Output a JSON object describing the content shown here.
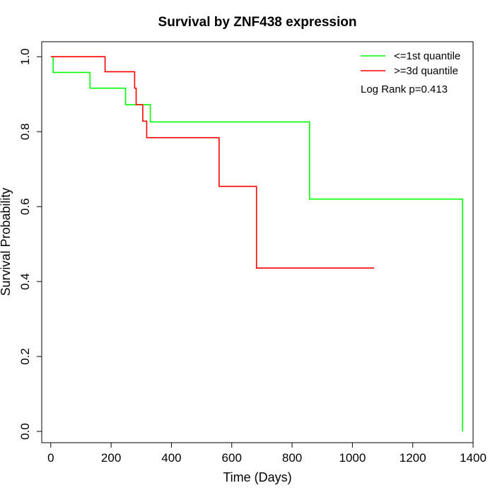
{
  "chart_data": {
    "type": "line",
    "subtype": "kaplan-meier step curve",
    "title": "Survival by ZNF438 expression",
    "xlabel": "Time (Days)",
    "ylabel": "Survival Probability",
    "xlim": [
      -30,
      1400
    ],
    "ylim": [
      -0.03,
      1.04
    ],
    "xticks": [
      0,
      200,
      400,
      600,
      800,
      1000,
      1200,
      1400
    ],
    "yticks": [
      0.0,
      0.2,
      0.4,
      0.6,
      0.8,
      1.0
    ],
    "xtick_labels": [
      "0",
      "200",
      "400",
      "600",
      "800",
      "1000",
      "1200",
      "1400"
    ],
    "ytick_labels": [
      "0.0",
      "0.2",
      "0.4",
      "0.6",
      "0.8",
      "1.0"
    ],
    "grid": false,
    "legend_position": "top-right",
    "annotation": "Log Rank p=0.413",
    "series": [
      {
        "name": "<=1st quantile",
        "color": "#00ff00",
        "steps": [
          [
            0,
            1.0
          ],
          [
            8,
            0.958
          ],
          [
            130,
            0.916
          ],
          [
            248,
            0.872
          ],
          [
            330,
            0.826
          ],
          [
            858,
            0.62
          ],
          [
            1365,
            0.0
          ]
        ],
        "end_x": 1365
      },
      {
        "name": ">=3d quantile",
        "color": "#ff0000",
        "steps": [
          [
            0,
            1.0
          ],
          [
            180,
            0.96
          ],
          [
            278,
            0.916
          ],
          [
            283,
            0.872
          ],
          [
            305,
            0.828
          ],
          [
            318,
            0.784
          ],
          [
            558,
            0.654
          ],
          [
            682,
            0.436
          ]
        ],
        "end_x": 1072
      }
    ]
  }
}
